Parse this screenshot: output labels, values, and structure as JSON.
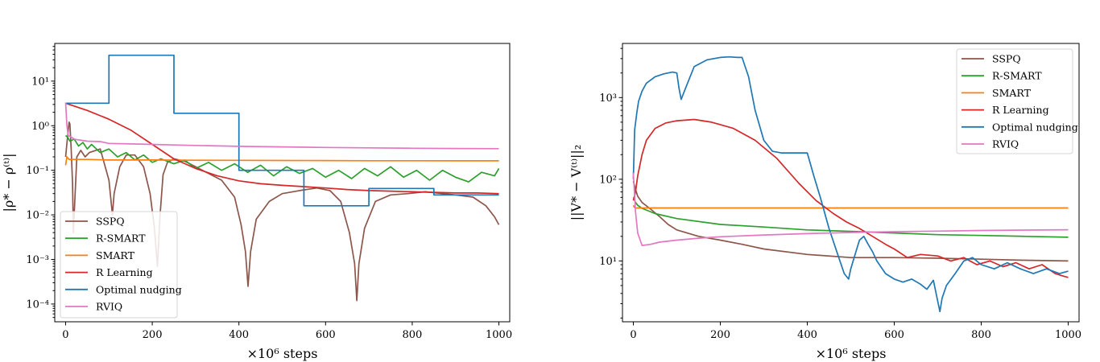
{
  "colors": {
    "SSPQ": "#8c564b",
    "R-SMART": "#2ca02c",
    "SMART": "#ff7f0e",
    "R Learning": "#d62728",
    "Optimal nudging": "#1f77b4",
    "RVIQ": "#e377c2"
  },
  "chart_data": [
    {
      "type": "line",
      "title": "",
      "xlabel": "×10⁶ steps",
      "ylabel": "|ρ* − ρ⁽ᵗ⁾|",
      "yscale": "log",
      "xlim": [
        -25,
        1025
      ],
      "ylim": [
        4e-05,
        70
      ],
      "xticks": [
        0,
        200,
        400,
        600,
        800,
        1000
      ],
      "xtick_labels": [
        "0",
        "200",
        "400",
        "600",
        "800",
        "1000"
      ],
      "yticks": [
        0.0001,
        0.001,
        0.01,
        0.1,
        1,
        10
      ],
      "ytick_labels": [
        "10⁻⁴",
        "10⁻³",
        "10⁻²",
        "10⁻¹",
        "10⁰",
        "10¹"
      ],
      "legend": "lower-left",
      "series": [
        {
          "name": "SSPQ",
          "x": [
            0,
            4,
            8,
            10,
            13,
            16,
            18,
            22,
            26,
            35,
            45,
            55,
            80,
            100,
            108,
            112,
            125,
            140,
            160,
            180,
            195,
            205,
            212,
            218,
            225,
            235,
            250,
            275,
            300,
            330,
            360,
            390,
            405,
            415,
            421,
            427,
            440,
            470,
            500,
            540,
            580,
            610,
            635,
            655,
            667,
            672,
            677,
            690,
            715,
            750,
            790,
            830,
            870,
            900,
            940,
            970,
            990,
            1000
          ],
          "y": [
            0.2,
            0.5,
            1.2,
            1.1,
            0.3,
            0.05,
            0.004,
            0.03,
            0.2,
            0.28,
            0.2,
            0.25,
            0.3,
            0.06,
            0.01,
            0.03,
            0.12,
            0.22,
            0.22,
            0.12,
            0.03,
            0.005,
            0.0007,
            0.01,
            0.08,
            0.15,
            0.18,
            0.16,
            0.12,
            0.085,
            0.06,
            0.025,
            0.006,
            0.0015,
            0.00025,
            0.0015,
            0.008,
            0.02,
            0.03,
            0.035,
            0.04,
            0.035,
            0.02,
            0.004,
            0.0008,
            0.00012,
            0.0008,
            0.005,
            0.02,
            0.028,
            0.03,
            0.033,
            0.03,
            0.028,
            0.025,
            0.016,
            0.009,
            0.006
          ]
        },
        {
          "name": "R-SMART",
          "x": [
            0,
            5,
            10,
            20,
            30,
            40,
            50,
            60,
            80,
            100,
            120,
            140,
            160,
            180,
            200,
            220,
            250,
            275,
            300,
            330,
            360,
            390,
            420,
            450,
            480,
            510,
            540,
            570,
            600,
            630,
            660,
            690,
            720,
            750,
            780,
            810,
            840,
            870,
            900,
            930,
            960,
            990,
            1000
          ],
          "y": [
            0.6,
            0.55,
            0.45,
            0.5,
            0.35,
            0.42,
            0.3,
            0.38,
            0.25,
            0.3,
            0.2,
            0.25,
            0.17,
            0.22,
            0.15,
            0.18,
            0.14,
            0.17,
            0.11,
            0.15,
            0.1,
            0.14,
            0.09,
            0.13,
            0.075,
            0.12,
            0.085,
            0.11,
            0.07,
            0.1,
            0.065,
            0.11,
            0.075,
            0.12,
            0.07,
            0.1,
            0.06,
            0.1,
            0.07,
            0.055,
            0.09,
            0.075,
            0.11
          ]
        },
        {
          "name": "SMART",
          "x": [
            0,
            3,
            8,
            20,
            50,
            100,
            200,
            300,
            400,
            500,
            600,
            700,
            800,
            900,
            1000
          ],
          "y": [
            0.13,
            0.2,
            0.175,
            0.175,
            0.175,
            0.17,
            0.17,
            0.168,
            0.167,
            0.166,
            0.165,
            0.164,
            0.164,
            0.163,
            0.163
          ]
        },
        {
          "name": "R Learning",
          "x": [
            0,
            50,
            100,
            150,
            200,
            250,
            300,
            350,
            400,
            450,
            500,
            550,
            600,
            650,
            700,
            750,
            800,
            850,
            900,
            950,
            1000
          ],
          "y": [
            3.2,
            2.2,
            1.4,
            0.8,
            0.38,
            0.18,
            0.11,
            0.075,
            0.058,
            0.05,
            0.046,
            0.043,
            0.04,
            0.037,
            0.035,
            0.034,
            0.033,
            0.032,
            0.031,
            0.031,
            0.03
          ]
        },
        {
          "name": "Optimal nudging",
          "x": [
            0,
            100,
            100,
            250,
            250,
            400,
            400,
            550,
            550,
            700,
            700,
            850,
            850,
            1000
          ],
          "y": [
            3.2,
            3.2,
            38,
            38,
            1.9,
            1.9,
            0.1,
            0.1,
            0.016,
            0.016,
            0.039,
            0.039,
            0.028,
            0.028
          ]
        },
        {
          "name": "RVIQ",
          "x": [
            0,
            3,
            6,
            10,
            20,
            30,
            50,
            80,
            100,
            150,
            200,
            250,
            300,
            400,
            500,
            600,
            700,
            800,
            900,
            1000
          ],
          "y": [
            3.3,
            1.0,
            0.6,
            0.58,
            0.5,
            0.48,
            0.45,
            0.44,
            0.4,
            0.39,
            0.38,
            0.37,
            0.36,
            0.345,
            0.335,
            0.325,
            0.318,
            0.312,
            0.308,
            0.305
          ]
        }
      ]
    },
    {
      "type": "line",
      "title": "",
      "xlabel": "×10⁶ steps",
      "ylabel": "||V* − V⁽ᵗ⁾||₂",
      "yscale": "log",
      "xlim": [
        -25,
        1025
      ],
      "ylim": [
        1.8,
        4600
      ],
      "xticks": [
        0,
        200,
        400,
        600,
        800,
        1000
      ],
      "xtick_labels": [
        "0",
        "200",
        "400",
        "600",
        "800",
        "1000"
      ],
      "yticks": [
        10,
        100,
        1000
      ],
      "ytick_labels": [
        "10¹",
        "10²",
        "10³"
      ],
      "legend": "top-right",
      "series": [
        {
          "name": "SSPQ",
          "x": [
            0,
            5,
            10,
            20,
            40,
            60,
            80,
            100,
            150,
            200,
            250,
            300,
            400,
            500,
            600,
            700,
            800,
            900,
            1000
          ],
          "y": [
            95,
            75,
            62,
            52,
            43,
            35,
            28,
            24,
            20,
            18,
            16,
            14,
            12,
            11,
            11,
            10.8,
            10.5,
            10.2,
            10
          ]
        },
        {
          "name": "R-SMART",
          "x": [
            0,
            5,
            10,
            20,
            50,
            100,
            200,
            300,
            400,
            500,
            600,
            700,
            800,
            900,
            1000
          ],
          "y": [
            60,
            52,
            48,
            44,
            38,
            33,
            28,
            26,
            24,
            23,
            22,
            21,
            20.5,
            20,
            19.5
          ]
        },
        {
          "name": "SMART",
          "x": [
            0,
            3,
            6,
            10,
            50,
            100,
            300,
            500,
            700,
            1000
          ],
          "y": [
            48,
            45,
            44.5,
            44.5,
            44.5,
            44.5,
            44.5,
            44.5,
            44.5,
            44.5
          ]
        },
        {
          "name": "R Learning",
          "x": [
            0,
            5,
            10,
            20,
            30,
            50,
            75,
            100,
            140,
            180,
            230,
            280,
            330,
            380,
            420,
            460,
            490,
            520,
            550,
            580,
            600,
            630,
            660,
            700,
            730,
            760,
            790,
            820,
            850,
            880,
            910,
            940,
            970,
            990,
            1000
          ],
          "y": [
            55,
            70,
            110,
            200,
            300,
            420,
            490,
            520,
            540,
            500,
            420,
            300,
            180,
            90,
            55,
            38,
            30,
            25,
            20,
            16,
            14,
            11,
            12,
            11.5,
            10,
            11,
            9,
            10,
            8.5,
            9.5,
            8,
            9,
            7,
            6.5,
            6.3
          ]
        },
        {
          "name": "Optimal nudging",
          "x": [
            0,
            3,
            8,
            12,
            20,
            30,
            50,
            70,
            90,
            100,
            105,
            110,
            120,
            140,
            170,
            200,
            220,
            240,
            250,
            265,
            280,
            300,
            320,
            340,
            360,
            380,
            400,
            415,
            430,
            450,
            470,
            485,
            495,
            500,
            510,
            520,
            530,
            540,
            550,
            560,
            580,
            600,
            620,
            640,
            660,
            675,
            690,
            700,
            705,
            710,
            720,
            740,
            760,
            780,
            800,
            830,
            860,
            890,
            920,
            950,
            980,
            1000
          ],
          "y": [
            100,
            400,
            650,
            900,
            1200,
            1500,
            1800,
            1950,
            2050,
            2000,
            1300,
            950,
            1300,
            2400,
            2900,
            3100,
            3150,
            3100,
            3100,
            1800,
            700,
            300,
            220,
            210,
            210,
            210,
            210,
            110,
            60,
            25,
            12,
            7,
            6,
            8,
            12,
            18,
            20,
            16,
            13,
            10,
            7,
            6,
            5.5,
            6,
            5.2,
            4.5,
            5.8,
            3.2,
            2.4,
            3.5,
            5,
            7,
            10,
            11,
            9,
            8,
            9.5,
            8,
            7,
            8,
            7,
            7.5
          ]
        },
        {
          "name": "RVIQ",
          "x": [
            0,
            5,
            10,
            20,
            40,
            60,
            100,
            150,
            200,
            300,
            400,
            500,
            600,
            700,
            800,
            900,
            1000
          ],
          "y": [
            120,
            40,
            22,
            15.5,
            16,
            17,
            18,
            19,
            19.8,
            20.8,
            21.6,
            22.3,
            22.8,
            23.2,
            23.6,
            23.9,
            24.1
          ]
        }
      ]
    }
  ]
}
